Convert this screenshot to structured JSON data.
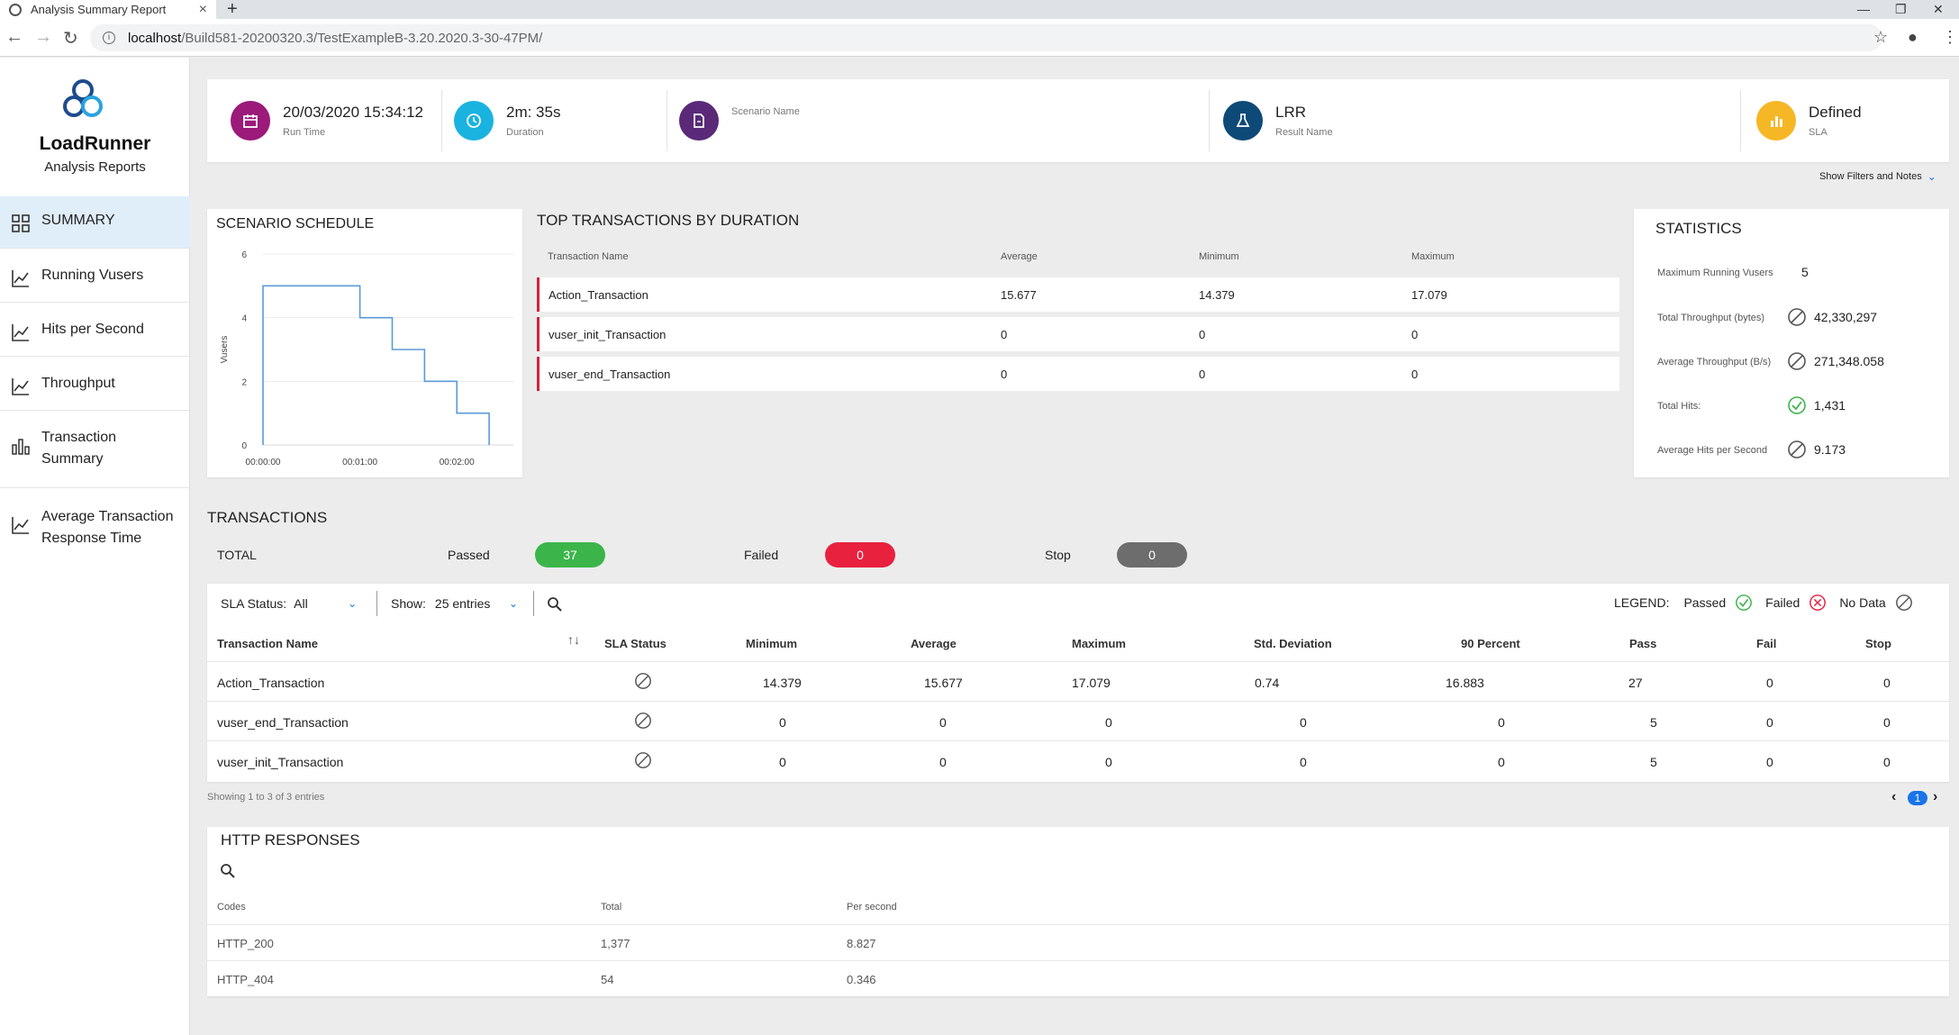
{
  "browser": {
    "tab_title": "Analysis Summary Report",
    "url_host": "localhost",
    "url_path": "/Build581-20200320.3/TestExampleB-3.20.2020.3-30-47PM/"
  },
  "sidebar": {
    "brand": "LoadRunner",
    "brand_sub": "Analysis Reports",
    "items": [
      {
        "label": "SUMMARY"
      },
      {
        "label": "Running Vusers"
      },
      {
        "label": "Hits per Second"
      },
      {
        "label": "Throughput"
      },
      {
        "label": "Transaction Summary"
      },
      {
        "label": "Average Transaction Response Time"
      }
    ]
  },
  "info_bar": {
    "run_time": {
      "value": "20/03/2020 15:34:12",
      "label": "Run Time",
      "color": "#9b1a7a"
    },
    "duration": {
      "value": "2m: 35s",
      "label": "Duration",
      "color": "#1ab3e0"
    },
    "scenario": {
      "value": "",
      "label": "Scenario Name",
      "color": "#5a2a78"
    },
    "result": {
      "value": "LRR",
      "label": "Result Name",
      "color": "#0e4a78"
    },
    "sla": {
      "value": "Defined",
      "label": "SLA",
      "color": "#f5b726"
    },
    "filters_link": "Show Filters and Notes"
  },
  "scenario_schedule": {
    "title": "SCENARIO SCHEDULE",
    "chart_data": {
      "type": "line",
      "title": "SCENARIO SCHEDULE",
      "ylabel": "Vusers",
      "xlabel": "",
      "x_ticks": [
        "00:00:00",
        "00:01:00",
        "00:02:00"
      ],
      "y_ticks": [
        "0",
        "2",
        "4",
        "6"
      ],
      "ylim": [
        0,
        6
      ],
      "xlim_seconds": [
        0,
        155
      ],
      "step_points": [
        {
          "x": 0,
          "y": 0
        },
        {
          "x": 0,
          "y": 5
        },
        {
          "x": 60,
          "y": 5
        },
        {
          "x": 60,
          "y": 4
        },
        {
          "x": 80,
          "y": 4
        },
        {
          "x": 80,
          "y": 3
        },
        {
          "x": 100,
          "y": 3
        },
        {
          "x": 100,
          "y": 2
        },
        {
          "x": 120,
          "y": 2
        },
        {
          "x": 120,
          "y": 1
        },
        {
          "x": 140,
          "y": 1
        },
        {
          "x": 140,
          "y": 0
        }
      ],
      "color": "#5b9bd5"
    }
  },
  "top_transactions": {
    "title": "TOP TRANSACTIONS BY DURATION",
    "columns": [
      "Transaction Name",
      "Average",
      "Minimum",
      "Maximum"
    ],
    "rows": [
      {
        "name": "Action_Transaction",
        "average": "15.677",
        "minimum": "14.379",
        "maximum": "17.079"
      },
      {
        "name": "vuser_init_Transaction",
        "average": "0",
        "minimum": "0",
        "maximum": "0"
      },
      {
        "name": "vuser_end_Transaction",
        "average": "0",
        "minimum": "0",
        "maximum": "0"
      }
    ]
  },
  "statistics": {
    "title": "STATISTICS",
    "rows": [
      {
        "label": "Maximum Running Vusers",
        "value": "5",
        "icon": "none"
      },
      {
        "label": "Total Throughput (bytes)",
        "value": "42,330,297",
        "icon": "no-data-icon"
      },
      {
        "label": "Average Throughput (B/s)",
        "value": "271,348.058",
        "icon": "no-data-icon"
      },
      {
        "label": "Total Hits:",
        "value": "1,431",
        "icon": "passed-icon"
      },
      {
        "label": "Average Hits per Second",
        "value": "9.173",
        "icon": "no-data-icon"
      }
    ]
  },
  "transactions": {
    "title": "TRANSACTIONS",
    "total_label": "TOTAL",
    "passed_label": "Passed",
    "passed_count": "37",
    "failed_label": "Failed",
    "failed_count": "0",
    "stop_label": "Stop",
    "stop_count": "0",
    "colors": {
      "passed": "#3bb54a",
      "failed": "#e8213f",
      "stop": "#6d6d6d"
    },
    "filters": {
      "sla_label": "SLA Status:",
      "sla_value": "All",
      "show_label": "Show:",
      "show_value": "25 entries"
    },
    "legend": {
      "label": "LEGEND:",
      "passed": "Passed",
      "failed": "Failed",
      "no_data": "No Data"
    },
    "columns": [
      "Transaction Name",
      "SLA Status",
      "Minimum",
      "Average",
      "Maximum",
      "Std. Deviation",
      "90 Percent",
      "Pass",
      "Fail",
      "Stop"
    ],
    "rows": [
      {
        "name": "Action_Transaction",
        "sla": "no-data",
        "minimum": "14.379",
        "average": "15.677",
        "maximum": "17.079",
        "std": "0.74",
        "p90": "16.883",
        "pass": "27",
        "fail": "0",
        "stop": "0"
      },
      {
        "name": "vuser_end_Transaction",
        "sla": "no-data",
        "minimum": "0",
        "average": "0",
        "maximum": "0",
        "std": "0",
        "p90": "0",
        "pass": "5",
        "fail": "0",
        "stop": "0"
      },
      {
        "name": "vuser_init_Transaction",
        "sla": "no-data",
        "minimum": "0",
        "average": "0",
        "maximum": "0",
        "std": "0",
        "p90": "0",
        "pass": "5",
        "fail": "0",
        "stop": "0"
      }
    ],
    "showing_text": "Showing 1 to 3 of 3 entries",
    "current_page": "1"
  },
  "http_responses": {
    "title": "HTTP RESPONSES",
    "columns": [
      "Codes",
      "Total",
      "Per second"
    ],
    "rows": [
      {
        "code": "HTTP_200",
        "total": "1,377",
        "per_second": "8.827"
      },
      {
        "code": "HTTP_404",
        "total": "54",
        "per_second": "0.346"
      }
    ]
  }
}
